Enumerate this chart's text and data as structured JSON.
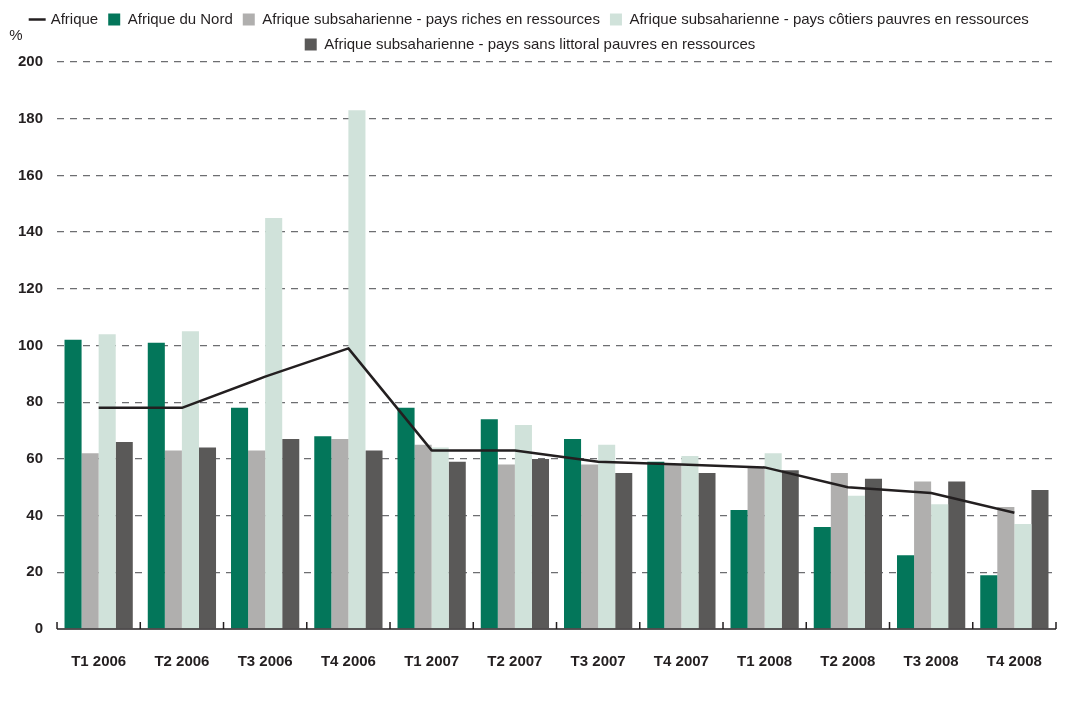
{
  "chart_data": {
    "type": "bar",
    "ylabel": "%",
    "categories": [
      "T1 2006",
      "T2 2006",
      "T3 2006",
      "T4 2006",
      "T1 2007",
      "T2 2007",
      "T3 2007",
      "T4 2007",
      "T1 2008",
      "T2 2008",
      "T3 2008",
      "T4 2008"
    ],
    "series": [
      {
        "name": "Afrique du Nord",
        "color": "#03765a",
        "values": [
          102,
          101,
          78,
          68,
          78,
          74,
          67,
          59,
          42,
          36,
          26,
          19
        ]
      },
      {
        "name": "Afrique subsaharienne - pays riches en ressources",
        "color": "#b0afae",
        "values": [
          62,
          63,
          63,
          67,
          65,
          58,
          58,
          58,
          57,
          55,
          52,
          43
        ]
      },
      {
        "name": "Afrique subsaharienne - pays côtiers pauvres en ressources",
        "color": "#d0e2da",
        "values": [
          104,
          105,
          145,
          183,
          64,
          72,
          65,
          61,
          62,
          47,
          44,
          37
        ]
      },
      {
        "name": "Afrique subsaharienne - pays sans littoral pauvres en ressources",
        "color": "#5a5958",
        "values": [
          66,
          64,
          67,
          63,
          59,
          60,
          55,
          55,
          56,
          53,
          52,
          49
        ]
      },
      {
        "name": "Afrique",
        "type": "line",
        "color": "#231f20",
        "values": [
          78,
          78,
          89,
          99,
          63,
          63,
          59,
          58,
          57,
          50,
          48,
          41
        ]
      }
    ],
    "ylim": [
      0,
      200
    ],
    "yticks": [
      0,
      20,
      40,
      60,
      80,
      100,
      120,
      140,
      160,
      180,
      200
    ],
    "grid": "y",
    "legend": "top",
    "marker": "none",
    "line_style": "solid"
  }
}
